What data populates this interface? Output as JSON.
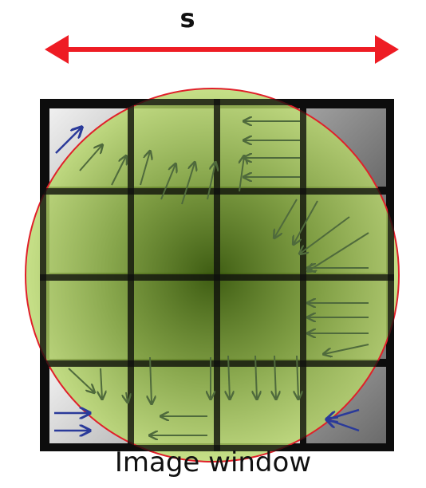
{
  "scale_label": "s",
  "caption": "Image window",
  "colors": {
    "scale_arrow": "#ee1c24",
    "circle_stroke": "#e0202a",
    "circle_fill": "#9cc34a",
    "circle_center": "#3a5a0c",
    "grid": "#0d0d0d",
    "cell_light": "#e2e2e2",
    "cell_mid": "#9a9a9a",
    "cell_dark": "#6e6e6e",
    "arrow_in_circle": "#4f6a3c",
    "arrow_outside": "#2a3a9a"
  },
  "icons": [
    "scale-arrow-icon",
    "window-circle-icon",
    "gradient-arrow-icon"
  ]
}
